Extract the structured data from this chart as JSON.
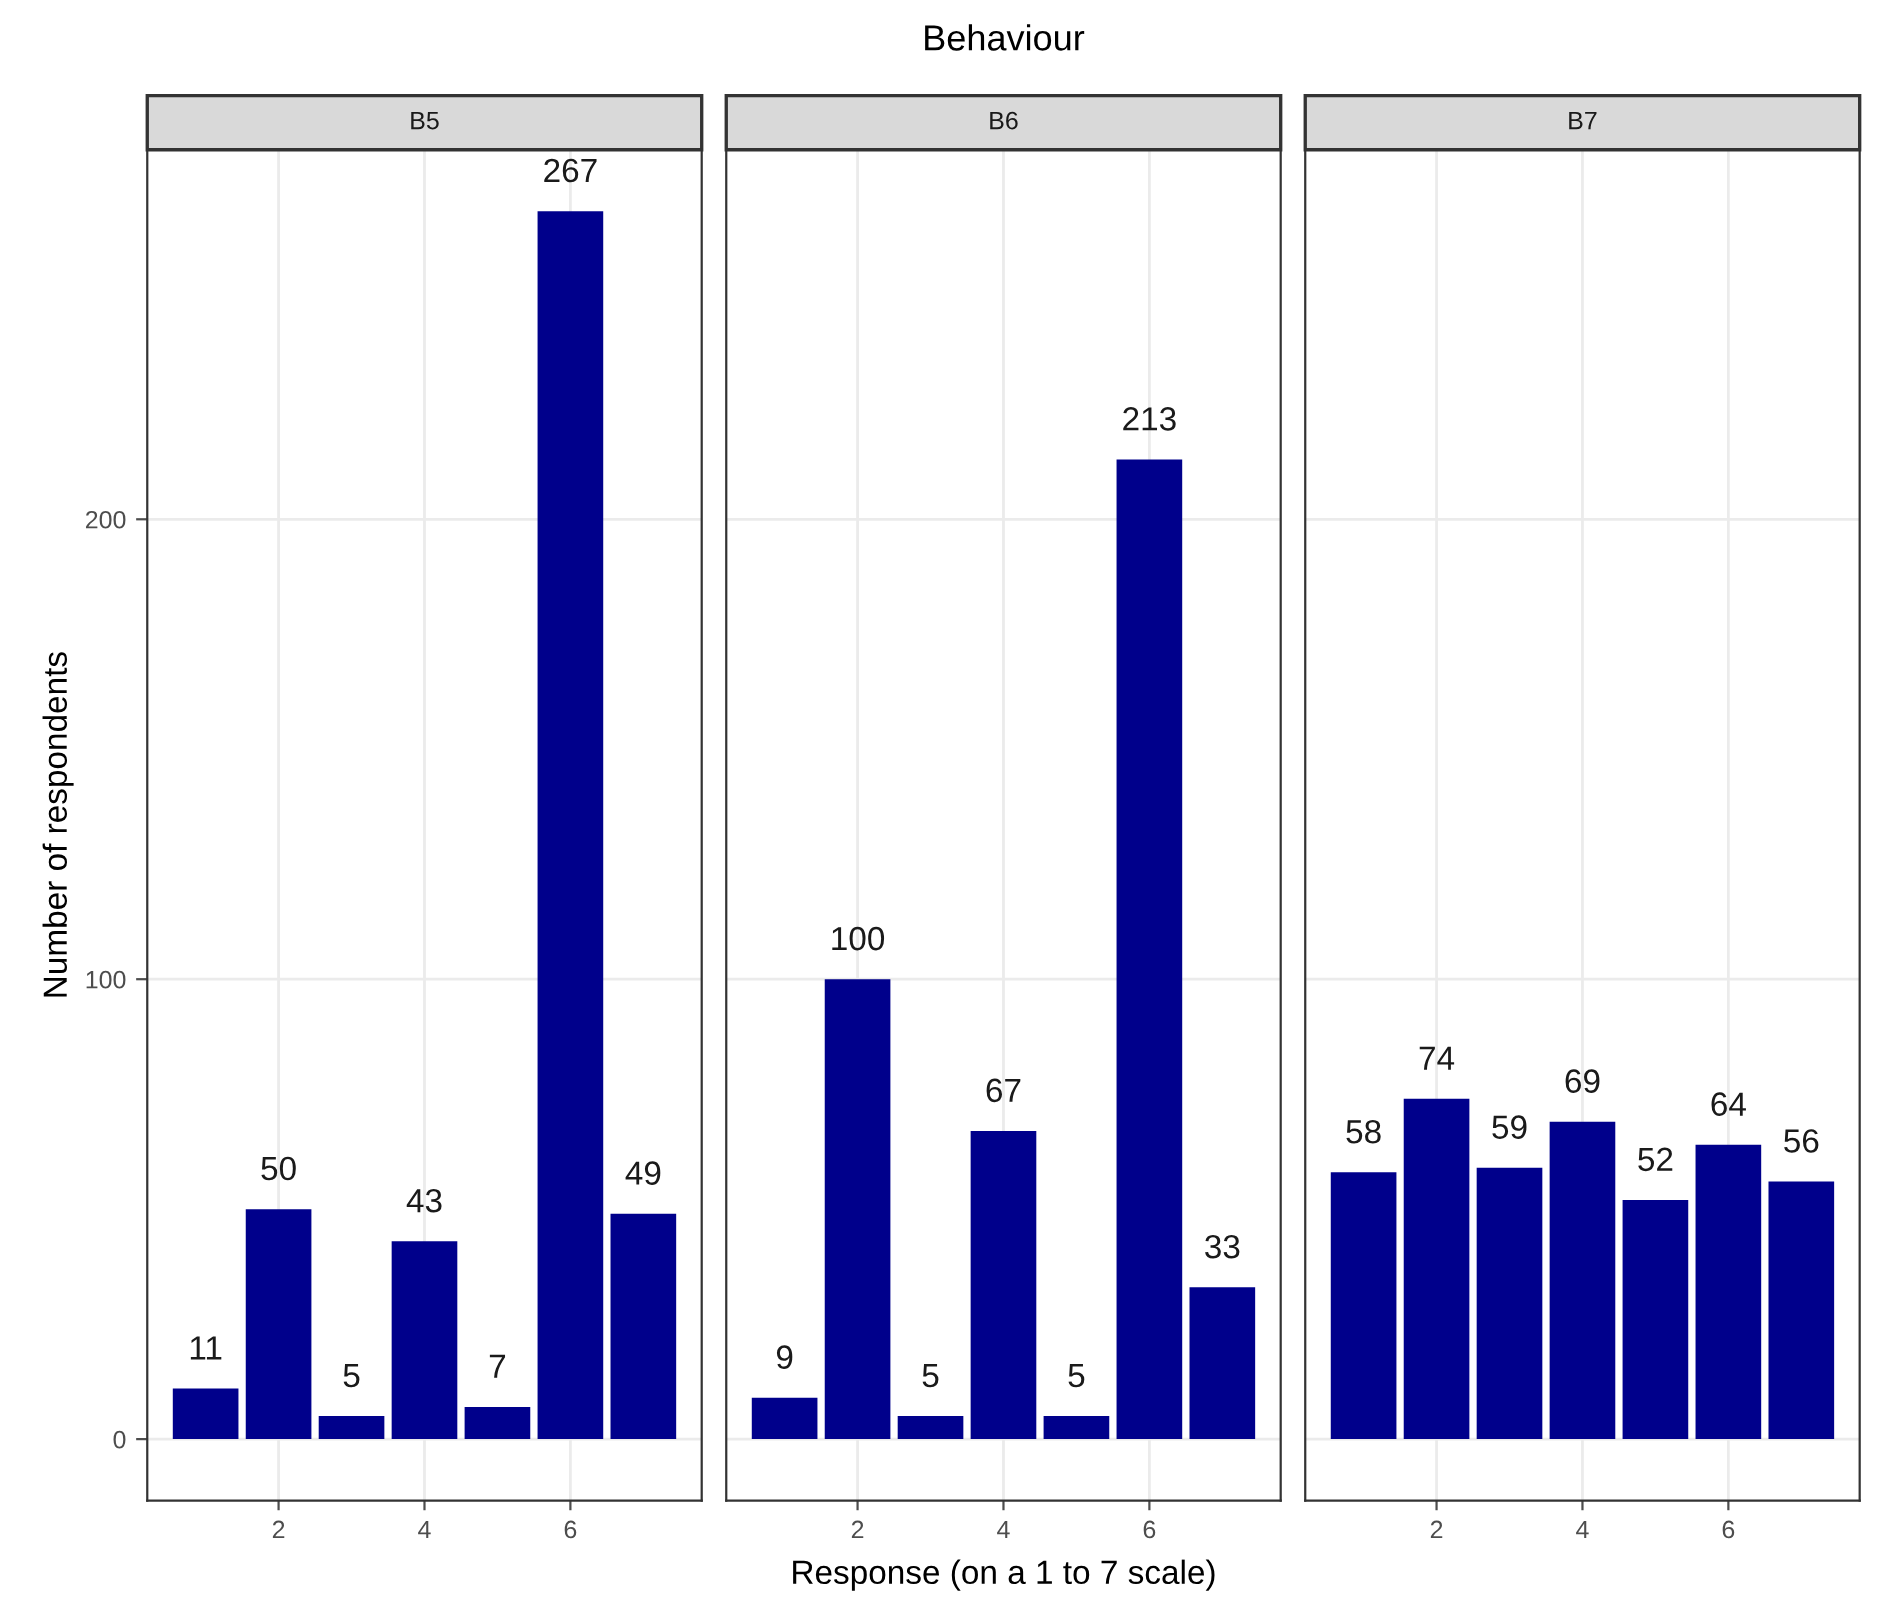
{
  "chart_data": [
    {
      "type": "bar",
      "subtitle": "B5",
      "ylabel": "Number of respondents",
      "x": [
        1,
        2,
        3,
        4,
        5,
        6,
        7
      ],
      "values": [
        11,
        50,
        5,
        43,
        7,
        267,
        49
      ],
      "color": "#00008b",
      "data_labels": true,
      "xlim": [
        0.2,
        7.8
      ],
      "xticks": [
        2,
        4,
        6
      ],
      "ylim": [
        -13.35,
        280.35
      ],
      "yticks": [
        0,
        100,
        200
      ],
      "grid": true
    },
    {
      "type": "bar",
      "title": "Behaviour",
      "subtitle": "B6",
      "xlabel": "Response (on a 1 to 7 scale)",
      "x": [
        1,
        2,
        3,
        4,
        5,
        6,
        7
      ],
      "values": [
        9,
        100,
        5,
        67,
        5,
        213,
        33
      ],
      "color": "#00008b",
      "data_labels": true,
      "xlim": [
        0.2,
        7.8
      ],
      "xticks": [
        2,
        4,
        6
      ],
      "ylim": [
        -13.35,
        280.35
      ],
      "yticks": [
        0,
        100,
        200
      ],
      "grid": true,
      "tick_labels": "x"
    },
    {
      "type": "bar",
      "subtitle": "B7",
      "x": [
        1,
        2,
        3,
        4,
        5,
        6,
        7
      ],
      "values": [
        58,
        74,
        59,
        69,
        52,
        64,
        56
      ],
      "color": "#00008b",
      "data_labels": true,
      "xlim": [
        0.2,
        7.8
      ],
      "xticks": [
        2,
        4,
        6
      ],
      "ylim": [
        -13.35,
        280.35
      ],
      "yticks": [
        0,
        100,
        200
      ],
      "grid": true,
      "tick_labels": "x"
    }
  ]
}
